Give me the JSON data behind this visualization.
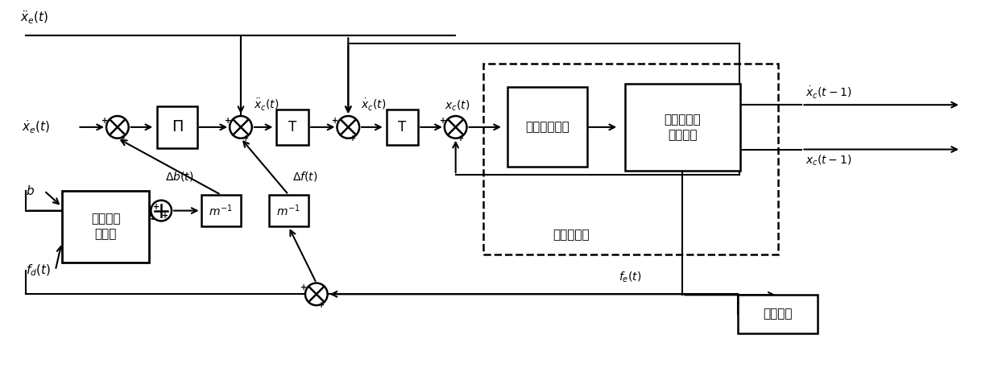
{
  "fig_width": 12.39,
  "fig_height": 4.57,
  "bg_color": "#ffffff",
  "lw": 1.5,
  "blw": 1.8,
  "labels": {
    "xddot_e": "$\\ddot{x}_e(t)$",
    "xdot_e": "$\\dot{x}_e(t)$",
    "xddot_c": "$\\ddot{x}_c(t)$",
    "xdot_c": "$\\dot{x}_c(t)$",
    "xc_t": "$x_c(t)$",
    "xdot_c_prev": "$\\dot{x}_c(t-1)$",
    "xc_prev": "$x_c(t-1)$",
    "delta_b": "$\\Delta b(t)$",
    "delta_f": "$\\Delta f(t)$",
    "b": "$b$",
    "fd": "$f_d(t)$",
    "fe": "$f_e(t)$",
    "Pi": "$\\Pi$",
    "T": "T",
    "minv": "$m^{-1}$",
    "pos_ctrl": "位置控制环",
    "smooth_ctrl": "光滑模控制器",
    "fruit_robot": "水果分拣并\n联机器人",
    "var_imp": "变阻抗自\n适应律",
    "force_sensor": "力传感器"
  }
}
